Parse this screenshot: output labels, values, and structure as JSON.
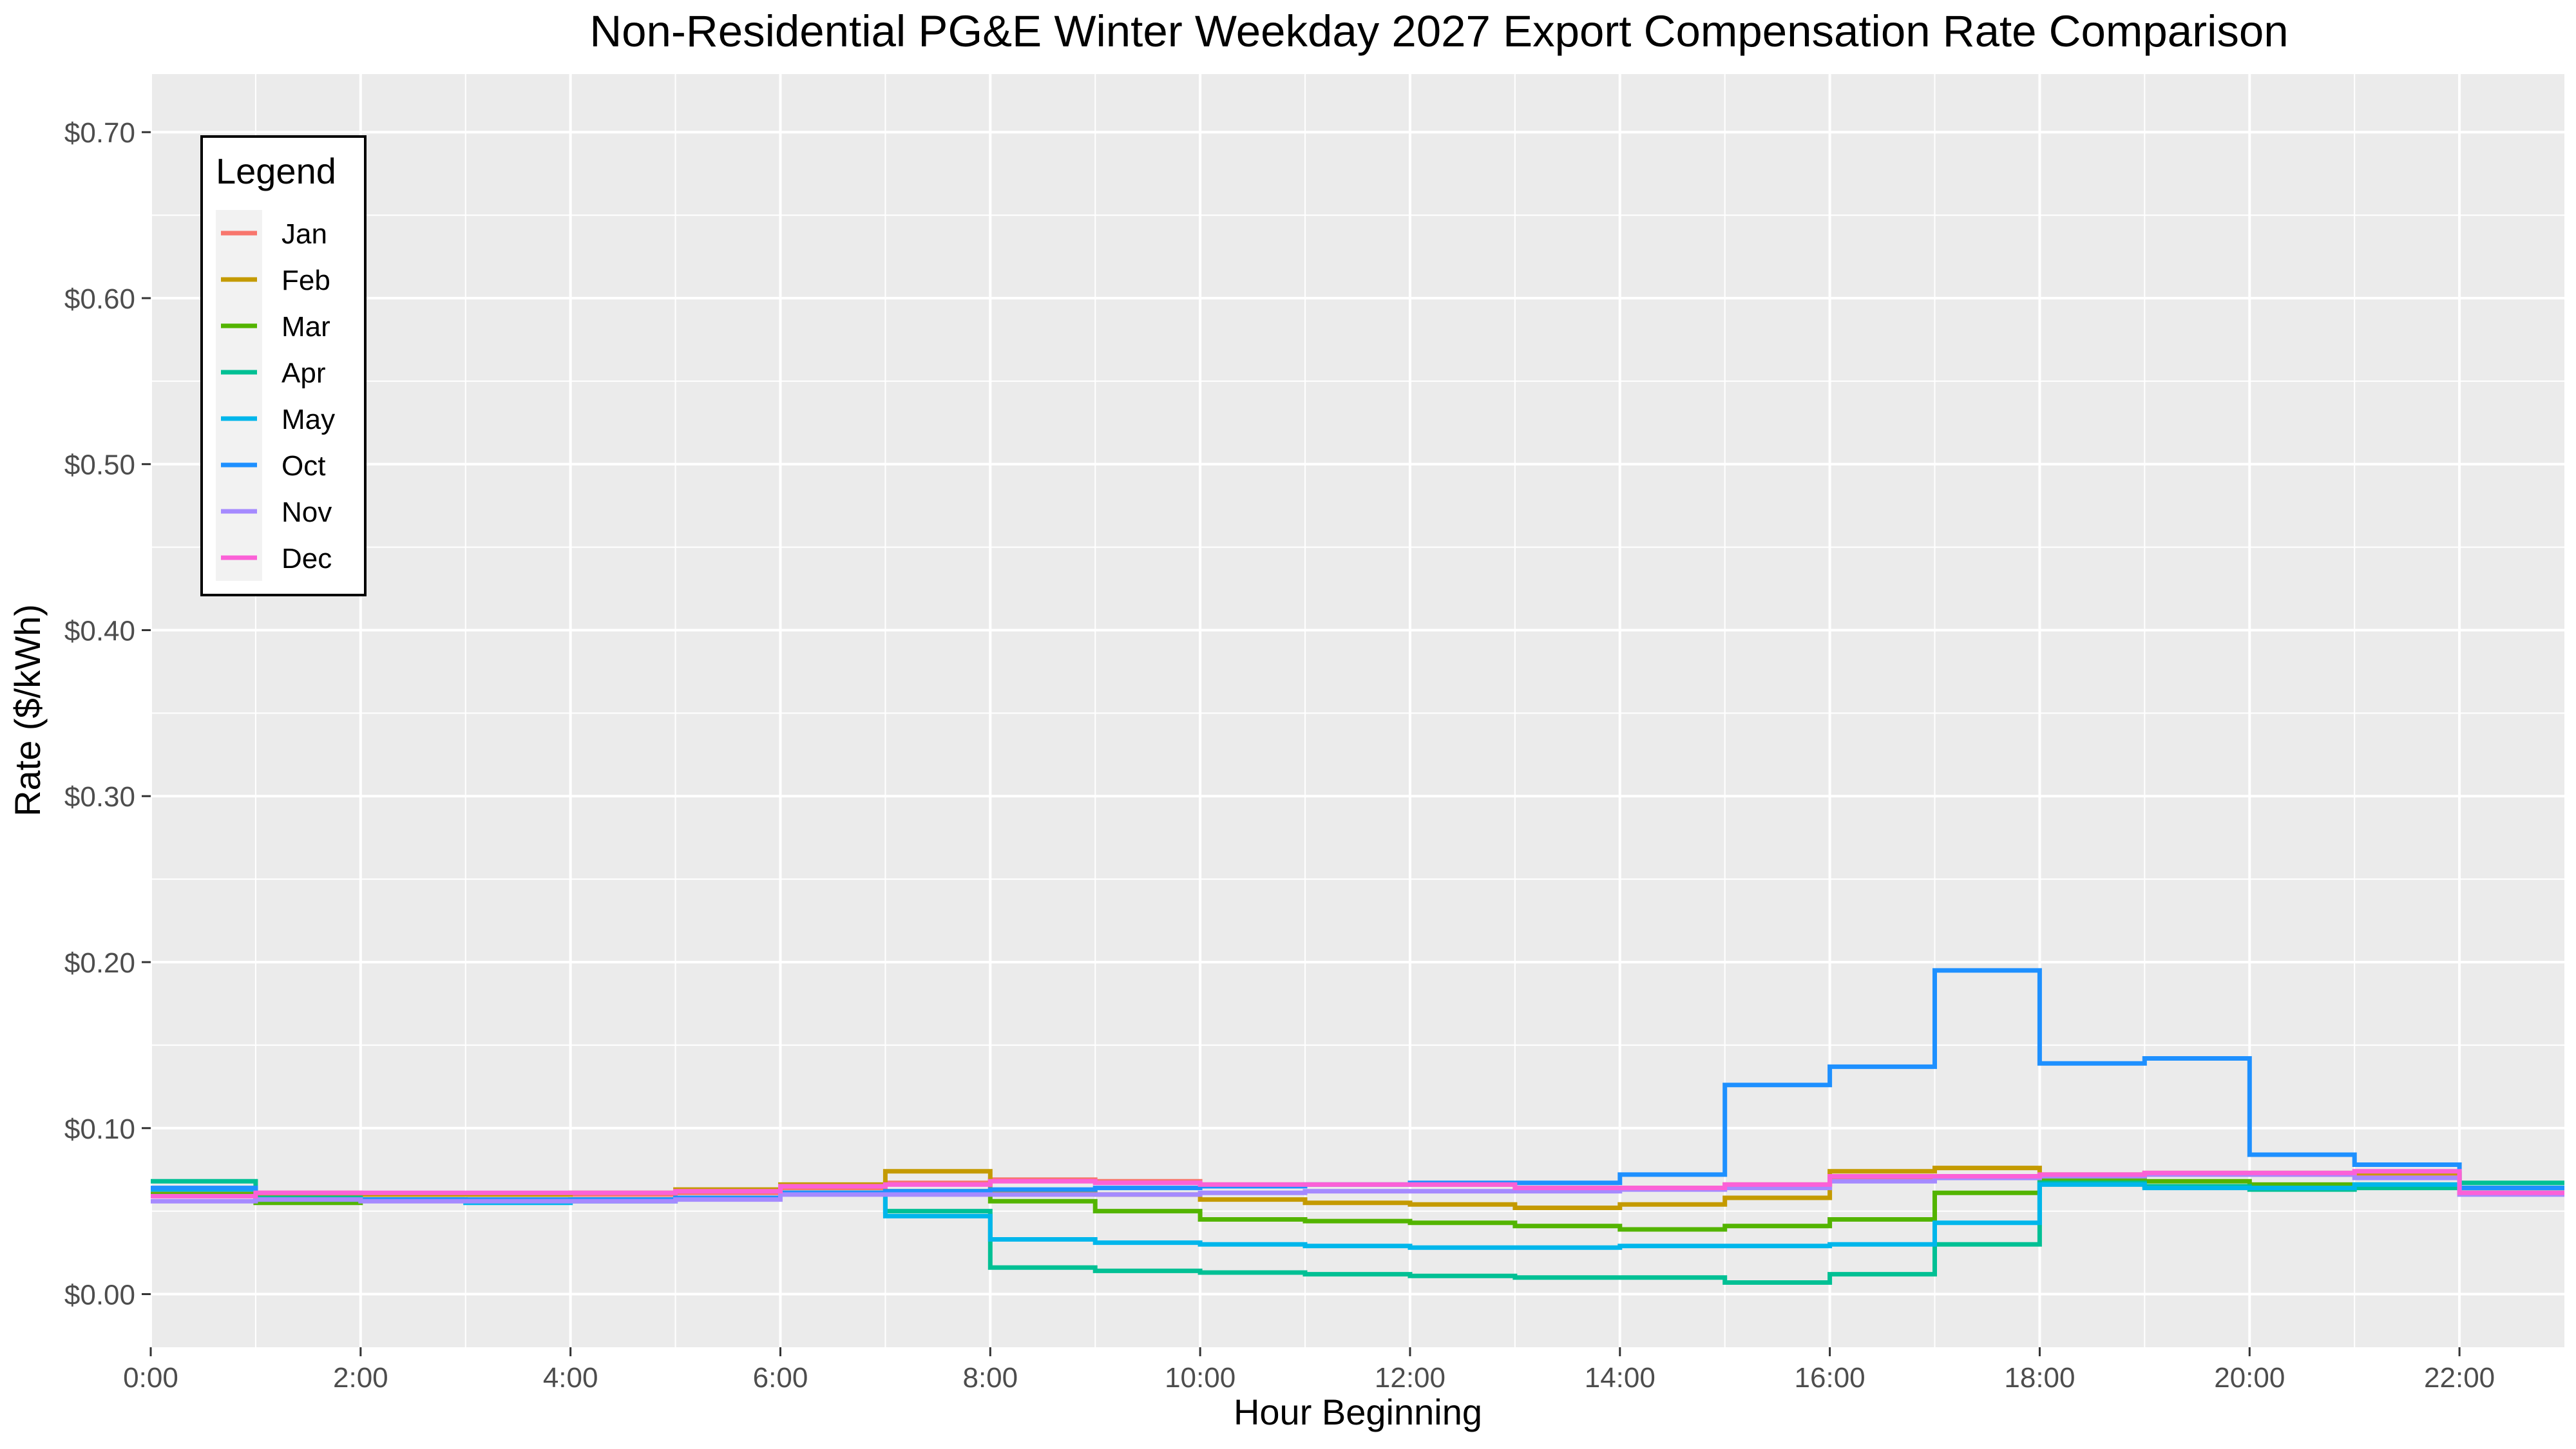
{
  "chart_data": {
    "type": "line",
    "step": true,
    "title": "Non-Residential PG&E Winter Weekday 2027 Export Compensation Rate Comparison",
    "xlabel": "Hour Beginning",
    "ylabel": "Rate ($/kWh)",
    "xlim": [
      0,
      23
    ],
    "ylim": [
      -0.032,
      0.735
    ],
    "x_ticks": [
      0,
      2,
      4,
      6,
      8,
      10,
      12,
      14,
      16,
      18,
      20,
      22
    ],
    "x_tick_labels": [
      "0:00",
      "2:00",
      "4:00",
      "6:00",
      "8:00",
      "10:00",
      "12:00",
      "14:00",
      "16:00",
      "18:00",
      "20:00",
      "22:00"
    ],
    "y_ticks": [
      0,
      0.1,
      0.2,
      0.3,
      0.4,
      0.5,
      0.6,
      0.7
    ],
    "y_tick_labels": [
      "$0.00",
      "$0.10",
      "$0.20",
      "$0.30",
      "$0.40",
      "$0.50",
      "$0.60",
      "$0.70"
    ],
    "grid": true,
    "legend": {
      "title": "Legend",
      "placement": "top-left"
    },
    "hours": [
      0,
      1,
      2,
      3,
      4,
      5,
      6,
      7,
      8,
      9,
      10,
      11,
      12,
      13,
      14,
      15,
      16,
      17,
      18,
      19,
      20,
      21,
      22,
      23
    ],
    "series": [
      {
        "name": "Jan",
        "color": "#F8766D",
        "values": [
          0.061,
          0.061,
          0.06,
          0.06,
          0.06,
          0.061,
          0.064,
          0.067,
          0.069,
          0.068,
          0.066,
          0.066,
          0.066,
          0.064,
          0.064,
          0.066,
          0.07,
          0.071,
          0.071,
          0.072,
          0.072,
          0.072,
          0.064,
          0.064
        ]
      },
      {
        "name": "Feb",
        "color": "#C49A00",
        "values": [
          0.062,
          0.06,
          0.06,
          0.06,
          0.061,
          0.063,
          0.066,
          0.074,
          0.062,
          0.06,
          0.057,
          0.055,
          0.054,
          0.052,
          0.054,
          0.058,
          0.074,
          0.076,
          0.072,
          0.073,
          0.073,
          0.073,
          0.064,
          0.064
        ]
      },
      {
        "name": "Mar",
        "color": "#53B400",
        "values": [
          0.06,
          0.055,
          0.057,
          0.056,
          0.057,
          0.058,
          0.061,
          0.062,
          0.056,
          0.05,
          0.045,
          0.044,
          0.043,
          0.041,
          0.039,
          0.041,
          0.045,
          0.061,
          0.069,
          0.068,
          0.066,
          0.066,
          0.064,
          0.064
        ]
      },
      {
        "name": "Apr",
        "color": "#00C094",
        "values": [
          0.068,
          0.058,
          0.057,
          0.056,
          0.057,
          0.058,
          0.061,
          0.05,
          0.016,
          0.014,
          0.013,
          0.012,
          0.011,
          0.01,
          0.01,
          0.007,
          0.012,
          0.03,
          0.067,
          0.065,
          0.063,
          0.064,
          0.067,
          0.067
        ]
      },
      {
        "name": "May",
        "color": "#00B6EB",
        "values": [
          0.063,
          0.057,
          0.057,
          0.055,
          0.056,
          0.058,
          0.061,
          0.047,
          0.033,
          0.031,
          0.03,
          0.029,
          0.028,
          0.028,
          0.029,
          0.029,
          0.03,
          0.043,
          0.066,
          0.064,
          0.064,
          0.066,
          0.064,
          0.064
        ]
      },
      {
        "name": "Oct",
        "color": "#1E90FF",
        "values": [
          0.064,
          0.057,
          0.057,
          0.057,
          0.057,
          0.058,
          0.061,
          0.062,
          0.063,
          0.064,
          0.065,
          0.066,
          0.067,
          0.067,
          0.072,
          0.126,
          0.137,
          0.195,
          0.139,
          0.142,
          0.084,
          0.078,
          0.064,
          0.064
        ]
      },
      {
        "name": "Nov",
        "color": "#A58AFF",
        "values": [
          0.056,
          0.057,
          0.056,
          0.056,
          0.056,
          0.057,
          0.06,
          0.06,
          0.06,
          0.06,
          0.061,
          0.062,
          0.062,
          0.062,
          0.063,
          0.064,
          0.068,
          0.07,
          0.071,
          0.072,
          0.072,
          0.07,
          0.06,
          0.06
        ]
      },
      {
        "name": "Dec",
        "color": "#FB61D7",
        "values": [
          0.059,
          0.061,
          0.061,
          0.061,
          0.061,
          0.062,
          0.065,
          0.066,
          0.068,
          0.067,
          0.066,
          0.066,
          0.066,
          0.064,
          0.064,
          0.066,
          0.071,
          0.071,
          0.072,
          0.073,
          0.073,
          0.074,
          0.061,
          0.061
        ]
      }
    ]
  }
}
